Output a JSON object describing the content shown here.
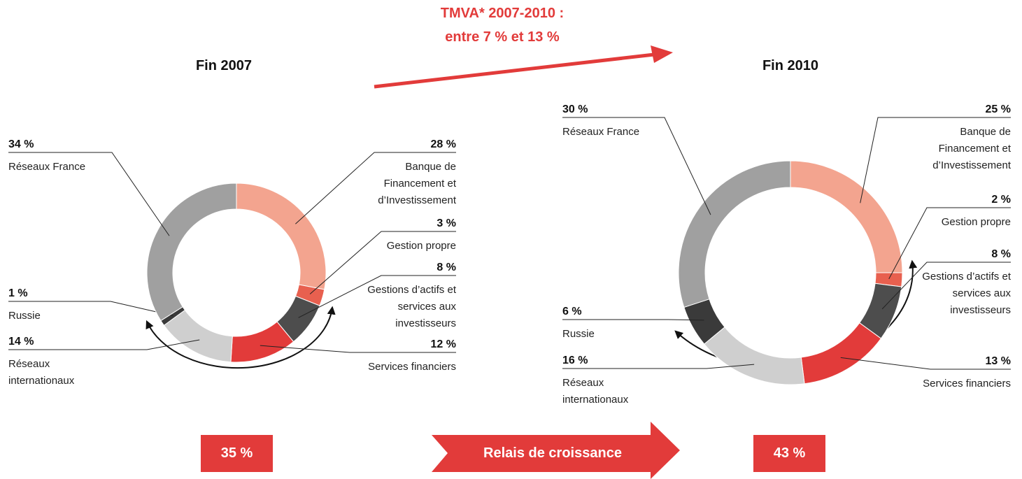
{
  "header": [
    "TMVA* 2007-2010 :",
    "entre 7 % et 13 %"
  ],
  "growth_label": "Relais de croissance",
  "chart_data": [
    {
      "type": "donut",
      "title": "Fin 2007",
      "categories": [
        "Banque de Financement et d’Investissement",
        "Gestion propre",
        "Gestions d’actifs et services aux investisseurs",
        "Services financiers",
        "Réseaux internationaux",
        "Russie",
        "Réseaux France"
      ],
      "values": [
        28,
        3,
        8,
        12,
        14,
        1,
        34
      ],
      "value_labels": [
        "28 %",
        "3 %",
        "8 %",
        "12 %",
        "14 %",
        "1 %",
        "34 %"
      ],
      "colors": [
        "#f3a48f",
        "#e8604f",
        "#4d4d4d",
        "#e23b3a",
        "#cfcfcf",
        "#3a3a3a",
        "#a0a0a0"
      ],
      "annotation": "35 %"
    },
    {
      "type": "donut",
      "title": "Fin 2010",
      "categories": [
        "Banque de Financement et d’Investissement",
        "Gestion propre",
        "Gestions d’actifs et services aux investisseurs",
        "Services financiers",
        "Réseaux internationaux",
        "Russie",
        "Réseaux France"
      ],
      "values": [
        25,
        2,
        8,
        13,
        16,
        6,
        30
      ],
      "value_labels": [
        "25 %",
        "2 %",
        "8 %",
        "13 %",
        "16 %",
        "6 %",
        "30 %"
      ],
      "colors": [
        "#f3a48f",
        "#e8604f",
        "#4d4d4d",
        "#e23b3a",
        "#cfcfcf",
        "#3a3a3a",
        "#a0a0a0"
      ],
      "annotation": "43 %"
    }
  ]
}
